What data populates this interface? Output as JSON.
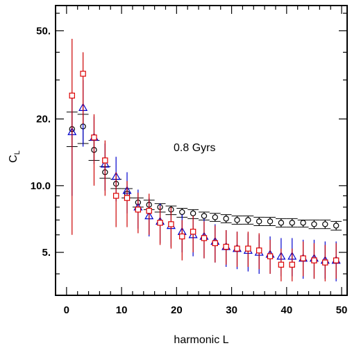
{
  "chart_data": {
    "type": "scatter",
    "xlabel": "harmonic L",
    "ylabel": "C",
    "ylabel_sub": "L",
    "annotation": "0.8 Gyrs",
    "x_scale": "linear",
    "y_scale": "log",
    "xlim": [
      -2,
      51
    ],
    "ylim": [
      3.2,
      65
    ],
    "x_ticks": [
      0,
      10,
      20,
      30,
      40,
      50
    ],
    "x_tick_labels": [
      "0",
      "10",
      "20",
      "30",
      "40",
      "50"
    ],
    "y_ticks": [
      5,
      10,
      20,
      50
    ],
    "y_tick_labels": [
      "5.",
      "10.0",
      "20.",
      "50."
    ],
    "grid": false,
    "legend": "none",
    "series": [
      {
        "marker": "circle",
        "color": "#000000",
        "errorbar_color": "#000000",
        "horizontal_bars": true,
        "x": [
          1,
          3,
          5,
          7,
          9,
          11,
          13,
          15,
          17,
          19,
          21,
          23,
          25,
          27,
          29,
          31,
          33,
          35,
          37,
          39,
          41,
          43,
          45,
          47,
          49
        ],
        "y": [
          18.0,
          18.5,
          14.5,
          11.5,
          10.2,
          9.2,
          8.4,
          8.2,
          8.0,
          7.8,
          7.6,
          7.5,
          7.3,
          7.2,
          7.1,
          7.0,
          7.0,
          6.9,
          6.9,
          6.8,
          6.8,
          6.8,
          6.7,
          6.7,
          6.6
        ],
        "y_low": [
          15.0,
          15.5,
          13.0,
          10.8,
          9.7,
          8.8,
          8.0,
          7.8,
          7.6,
          7.4,
          7.2,
          7.1,
          7.0,
          6.9,
          6.8,
          6.7,
          6.7,
          6.6,
          6.6,
          6.5,
          6.5,
          6.5,
          6.4,
          6.4,
          6.3
        ],
        "y_high": [
          21.5,
          21.0,
          16.0,
          12.2,
          10.7,
          9.7,
          8.8,
          8.6,
          8.3,
          8.1,
          7.9,
          7.8,
          7.6,
          7.5,
          7.4,
          7.3,
          7.3,
          7.2,
          7.2,
          7.1,
          7.1,
          7.0,
          7.0,
          7.0,
          6.9
        ]
      },
      {
        "marker": "triangle",
        "color": "#0000cc",
        "errorbar_color": "#0000cc",
        "x": [
          1,
          3,
          5,
          7,
          9,
          11,
          13,
          15,
          17,
          19,
          21,
          23,
          25,
          27,
          29,
          31,
          33,
          35,
          37,
          39,
          41,
          43,
          45,
          47,
          49
        ],
        "y": [
          17.5,
          22.5,
          16.5,
          12.5,
          11.0,
          9.5,
          8.0,
          7.3,
          6.9,
          6.6,
          6.2,
          6.0,
          5.9,
          5.6,
          5.3,
          5.2,
          5.1,
          5.0,
          4.9,
          4.8,
          4.8,
          4.7,
          4.7,
          4.6,
          4.6
        ],
        "y_low": [
          9.0,
          15.0,
          12.5,
          9.5,
          8.5,
          7.5,
          6.4,
          5.9,
          5.5,
          5.3,
          5.0,
          4.8,
          4.7,
          4.5,
          4.3,
          4.2,
          4.1,
          4.0,
          4.0,
          3.9,
          3.9,
          3.8,
          3.8,
          3.8,
          3.7
        ],
        "y_high": [
          26.0,
          30.0,
          20.5,
          15.5,
          13.5,
          11.5,
          9.6,
          8.8,
          8.3,
          7.9,
          7.4,
          7.2,
          7.1,
          6.7,
          6.3,
          6.2,
          6.1,
          6.0,
          5.9,
          5.8,
          5.8,
          5.7,
          5.7,
          5.6,
          5.6
        ]
      },
      {
        "marker": "square",
        "color": "#dd0000",
        "errorbar_color": "#cc0000",
        "x": [
          1,
          3,
          5,
          7,
          9,
          11,
          13,
          15,
          17,
          19,
          21,
          23,
          25,
          27,
          29,
          31,
          33,
          35,
          37,
          39,
          41,
          43,
          45,
          47,
          49
        ],
        "y": [
          25.5,
          32.0,
          16.5,
          13.0,
          9.0,
          8.8,
          7.8,
          7.7,
          6.8,
          6.7,
          5.9,
          6.2,
          5.8,
          5.5,
          5.3,
          5.2,
          5.2,
          5.1,
          4.8,
          4.4,
          4.4,
          4.7,
          4.6,
          4.5,
          4.6
        ],
        "y_low": [
          6.0,
          19.0,
          10.0,
          9.0,
          6.5,
          6.5,
          6.1,
          6.0,
          5.4,
          5.2,
          4.6,
          5.0,
          4.7,
          4.5,
          4.4,
          4.3,
          4.3,
          4.2,
          4.0,
          3.7,
          3.7,
          3.9,
          3.8,
          3.7,
          3.8
        ],
        "y_high": [
          46.0,
          40.0,
          21.0,
          16.0,
          11.5,
          10.5,
          9.3,
          9.2,
          8.1,
          8.0,
          7.0,
          7.3,
          6.9,
          6.6,
          6.3,
          6.2,
          6.2,
          6.1,
          5.7,
          5.2,
          5.2,
          5.6,
          5.5,
          5.4,
          5.5
        ]
      }
    ]
  }
}
